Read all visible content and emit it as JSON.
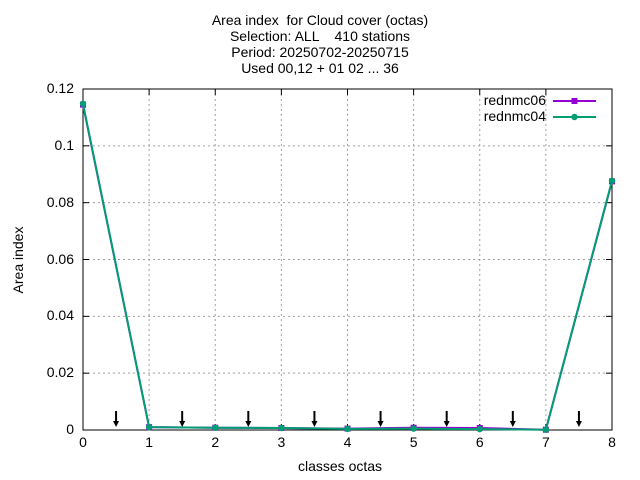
{
  "chart_data": {
    "type": "line",
    "title_lines": [
      "Area index  for Cloud cover (octas)",
      "Selection: ALL    410 stations",
      "Period: 20250702-20250715",
      "Used 00,12 + 01 02 ... 36"
    ],
    "xlabel": "classes octas",
    "ylabel": "Area index",
    "xlim": [
      0,
      8
    ],
    "ylim": [
      0,
      0.12
    ],
    "x_ticks": [
      "0",
      "1",
      "2",
      "3",
      "4",
      "5",
      "6",
      "7",
      "8"
    ],
    "y_ticks": [
      "0",
      "0.02",
      "0.04",
      "0.06",
      "0.08",
      "0.1",
      "0.12"
    ],
    "grid": true,
    "legend_position": "top-right",
    "x": [
      0,
      1,
      2,
      3,
      4,
      5,
      6,
      7,
      8
    ],
    "series": [
      {
        "name": "rednmc06",
        "color": "#9400d3",
        "marker": "square",
        "values": [
          0.1145,
          0.001,
          0.0008,
          0.0007,
          0.0005,
          0.0008,
          0.0007,
          0.0001,
          0.0875
        ]
      },
      {
        "name": "rednmc04",
        "color": "#009e73",
        "marker": "circle",
        "values": [
          0.1148,
          0.001,
          0.0008,
          0.0007,
          0.0004,
          0.0005,
          0.0003,
          0.0001,
          0.0877
        ]
      }
    ],
    "arrow_markers_x": [
      0.5,
      1.5,
      2.5,
      3.5,
      4.5,
      5.5,
      6.5,
      7.5
    ]
  }
}
